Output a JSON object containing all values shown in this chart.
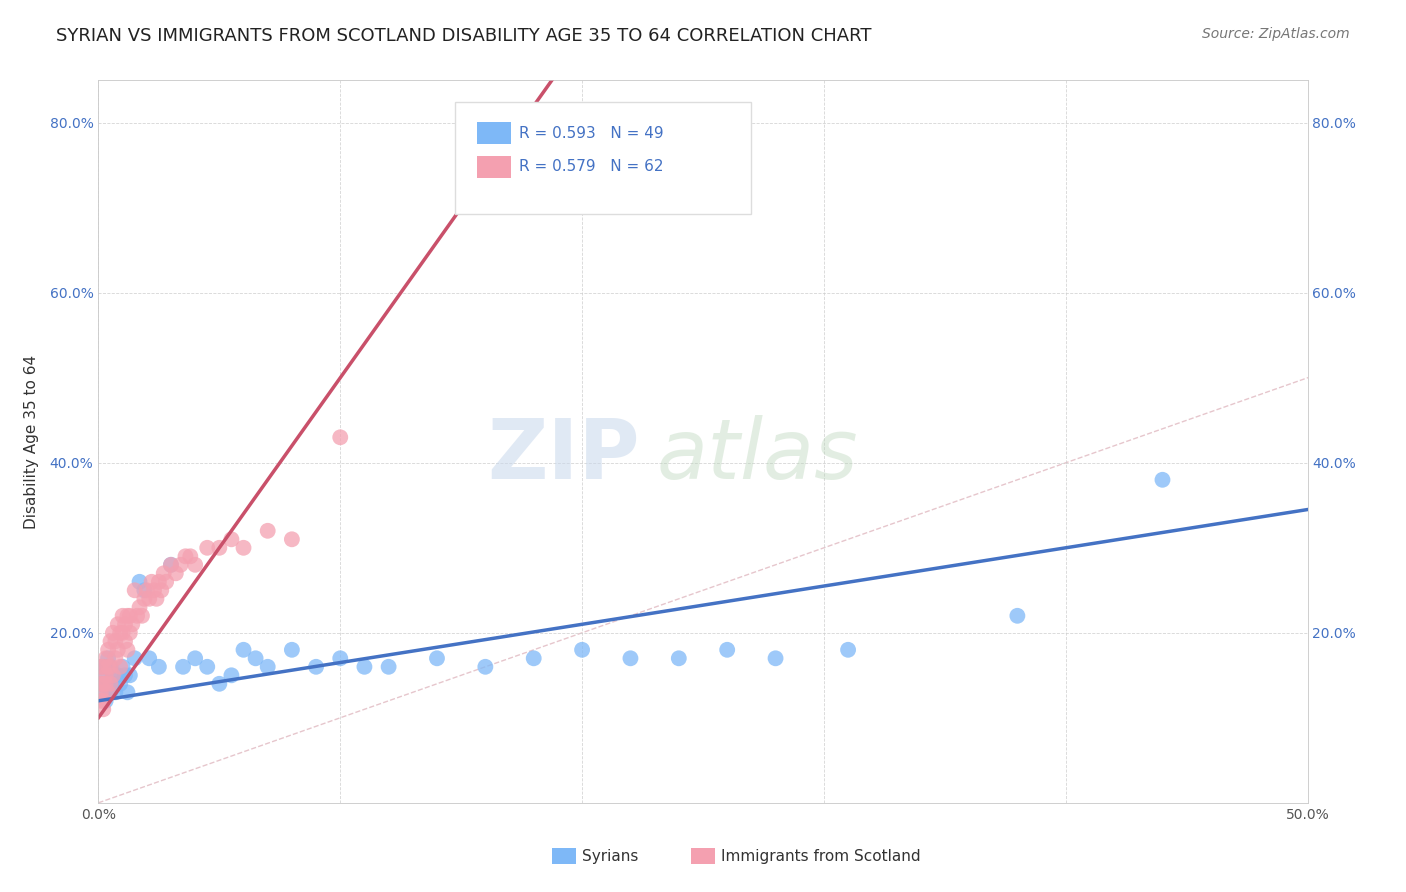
{
  "title": "SYRIAN VS IMMIGRANTS FROM SCOTLAND DISABILITY AGE 35 TO 64 CORRELATION CHART",
  "source": "Source: ZipAtlas.com",
  "ylabel": "Disability Age 35 to 64",
  "xlim": [
    0.0,
    0.5
  ],
  "ylim": [
    0.0,
    0.85
  ],
  "color_syrian": "#7EB8F7",
  "color_scotland": "#F4A0B0",
  "color_line_syrian": "#4472C4",
  "color_line_scotland": "#C9506A",
  "color_diag": "#E8B4BC",
  "legend_R_syrian": "R = 0.593",
  "legend_N_syrian": "N = 49",
  "legend_R_scotland": "R = 0.579",
  "legend_N_scotland": "N = 62",
  "syrians_x": [
    0.001,
    0.001,
    0.002,
    0.002,
    0.003,
    0.003,
    0.004,
    0.004,
    0.005,
    0.005,
    0.006,
    0.006,
    0.007,
    0.008,
    0.009,
    0.01,
    0.011,
    0.012,
    0.013,
    0.015,
    0.017,
    0.019,
    0.021,
    0.025,
    0.03,
    0.035,
    0.04,
    0.045,
    0.05,
    0.055,
    0.06,
    0.065,
    0.07,
    0.08,
    0.09,
    0.1,
    0.11,
    0.12,
    0.14,
    0.16,
    0.18,
    0.2,
    0.22,
    0.24,
    0.26,
    0.28,
    0.31,
    0.38,
    0.44
  ],
  "syrians_y": [
    0.14,
    0.16,
    0.13,
    0.15,
    0.12,
    0.16,
    0.14,
    0.17,
    0.13,
    0.16,
    0.14,
    0.15,
    0.13,
    0.15,
    0.14,
    0.16,
    0.15,
    0.13,
    0.15,
    0.17,
    0.26,
    0.25,
    0.17,
    0.16,
    0.28,
    0.16,
    0.17,
    0.16,
    0.14,
    0.15,
    0.18,
    0.17,
    0.16,
    0.18,
    0.16,
    0.17,
    0.16,
    0.16,
    0.17,
    0.16,
    0.17,
    0.18,
    0.17,
    0.17,
    0.18,
    0.17,
    0.18,
    0.22,
    0.38
  ],
  "scotland_x": [
    0.001,
    0.001,
    0.001,
    0.001,
    0.002,
    0.002,
    0.002,
    0.002,
    0.003,
    0.003,
    0.003,
    0.004,
    0.004,
    0.004,
    0.005,
    0.005,
    0.005,
    0.006,
    0.006,
    0.007,
    0.007,
    0.008,
    0.008,
    0.009,
    0.009,
    0.01,
    0.01,
    0.011,
    0.011,
    0.012,
    0.012,
    0.013,
    0.013,
    0.014,
    0.015,
    0.016,
    0.017,
    0.018,
    0.019,
    0.02,
    0.021,
    0.022,
    0.023,
    0.024,
    0.025,
    0.026,
    0.027,
    0.028,
    0.03,
    0.032,
    0.034,
    0.036,
    0.038,
    0.04,
    0.045,
    0.05,
    0.055,
    0.06,
    0.07,
    0.08,
    0.1,
    0.19
  ],
  "scotland_y": [
    0.12,
    0.14,
    0.13,
    0.16,
    0.11,
    0.14,
    0.16,
    0.12,
    0.15,
    0.14,
    0.17,
    0.13,
    0.18,
    0.16,
    0.14,
    0.19,
    0.16,
    0.15,
    0.2,
    0.19,
    0.17,
    0.21,
    0.18,
    0.2,
    0.16,
    0.2,
    0.22,
    0.19,
    0.21,
    0.22,
    0.18,
    0.22,
    0.2,
    0.21,
    0.25,
    0.22,
    0.23,
    0.22,
    0.24,
    0.25,
    0.24,
    0.26,
    0.25,
    0.24,
    0.26,
    0.25,
    0.27,
    0.26,
    0.28,
    0.27,
    0.28,
    0.29,
    0.29,
    0.28,
    0.3,
    0.3,
    0.31,
    0.3,
    0.32,
    0.31,
    0.43,
    0.73
  ],
  "syr_line_x": [
    0.0,
    0.5
  ],
  "syr_line_y": [
    0.12,
    0.345
  ],
  "scot_line_x": [
    0.0,
    0.19
  ],
  "scot_line_y": [
    0.1,
    0.86
  ],
  "title_fontsize": 13,
  "source_fontsize": 10,
  "axis_label_fontsize": 11
}
